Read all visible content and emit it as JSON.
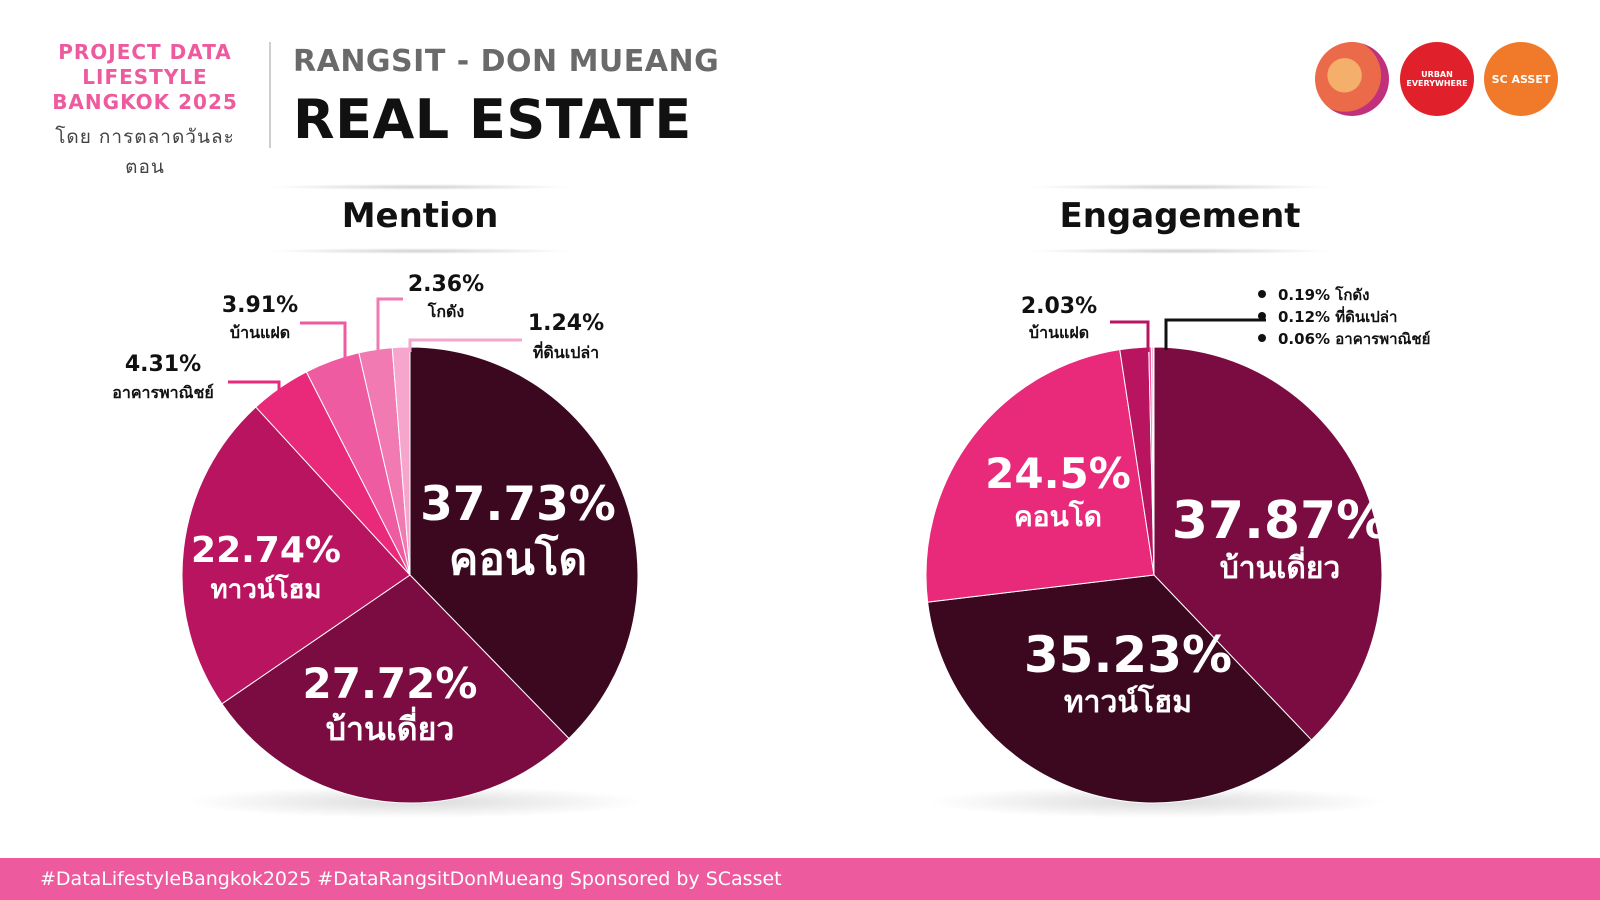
{
  "header": {
    "brand_lines": [
      "PROJECT DATA",
      "LIFESTYLE",
      "BANGKOK 2025"
    ],
    "brand_by": "โดย การตลาดวันละตอน",
    "subtitle": "RANGSIT - DON MUEANG",
    "title": "REAL ESTATE"
  },
  "logos": {
    "urban_line1": "URBAN",
    "urban_line2": "EVERYWHERE",
    "sc": "SC ASSET"
  },
  "colors": {
    "brand_pink": "#ee5a9e",
    "very_dark": "#3c0820",
    "dark": "#7a0c41",
    "magenta": "#b8145f",
    "hot_pink": "#e9297a",
    "pink": "#ee5ba0",
    "light_pink": "#f17ab3",
    "pale_pink": "#f6a6cc"
  },
  "chart_data": [
    {
      "type": "pie",
      "title": "Mention",
      "slices": [
        {
          "label": "คอนโด",
          "value": 37.73,
          "value_text": "37.73%",
          "color": "#3c0820"
        },
        {
          "label": "บ้านเดี่ยว",
          "value": 27.72,
          "value_text": "27.72%",
          "color": "#7a0c41"
        },
        {
          "label": "ทาวน์โฮม",
          "value": 22.74,
          "value_text": "22.74%",
          "color": "#b8145f"
        },
        {
          "label": "อาคารพาณิชย์",
          "value": 4.31,
          "value_text": "4.31%",
          "color": "#e9297a"
        },
        {
          "label": "บ้านแฝด",
          "value": 3.91,
          "value_text": "3.91%",
          "color": "#ee5ba0"
        },
        {
          "label": "โกดัง",
          "value": 2.36,
          "value_text": "2.36%",
          "color": "#f17ab3"
        },
        {
          "label": "ที่ดินเปล่า",
          "value": 1.24,
          "value_text": "1.24%",
          "color": "#f6a6cc"
        }
      ]
    },
    {
      "type": "pie",
      "title": "Engagement",
      "slices": [
        {
          "label": "บ้านเดี่ยว",
          "value": 37.87,
          "value_text": "37.87%",
          "color": "#7a0c41"
        },
        {
          "label": "ทาวน์โฮม",
          "value": 35.23,
          "value_text": "35.23%",
          "color": "#3c0820"
        },
        {
          "label": "คอนโด",
          "value": 24.5,
          "value_text": "24.5%",
          "color": "#e9297a"
        },
        {
          "label": "บ้านแฝด",
          "value": 2.03,
          "value_text": "2.03%",
          "color": "#b8145f"
        },
        {
          "label": "โกดัง",
          "value": 0.19,
          "value_text": "0.19% โกดัง",
          "color": "#ee5ba0"
        },
        {
          "label": "ที่ดินเปล่า",
          "value": 0.12,
          "value_text": "0.12% ที่ดินเปล่า",
          "color": "#f17ab3"
        },
        {
          "label": "อาคารพาณิชย์",
          "value": 0.06,
          "value_text": "0.06% อาคารพาณิชย์",
          "color": "#f6a6cc"
        }
      ]
    }
  ],
  "footer": {
    "text": "#DataLifestyleBangkok2025 #DataRangsitDonMueang Sponsored by SCasset"
  }
}
